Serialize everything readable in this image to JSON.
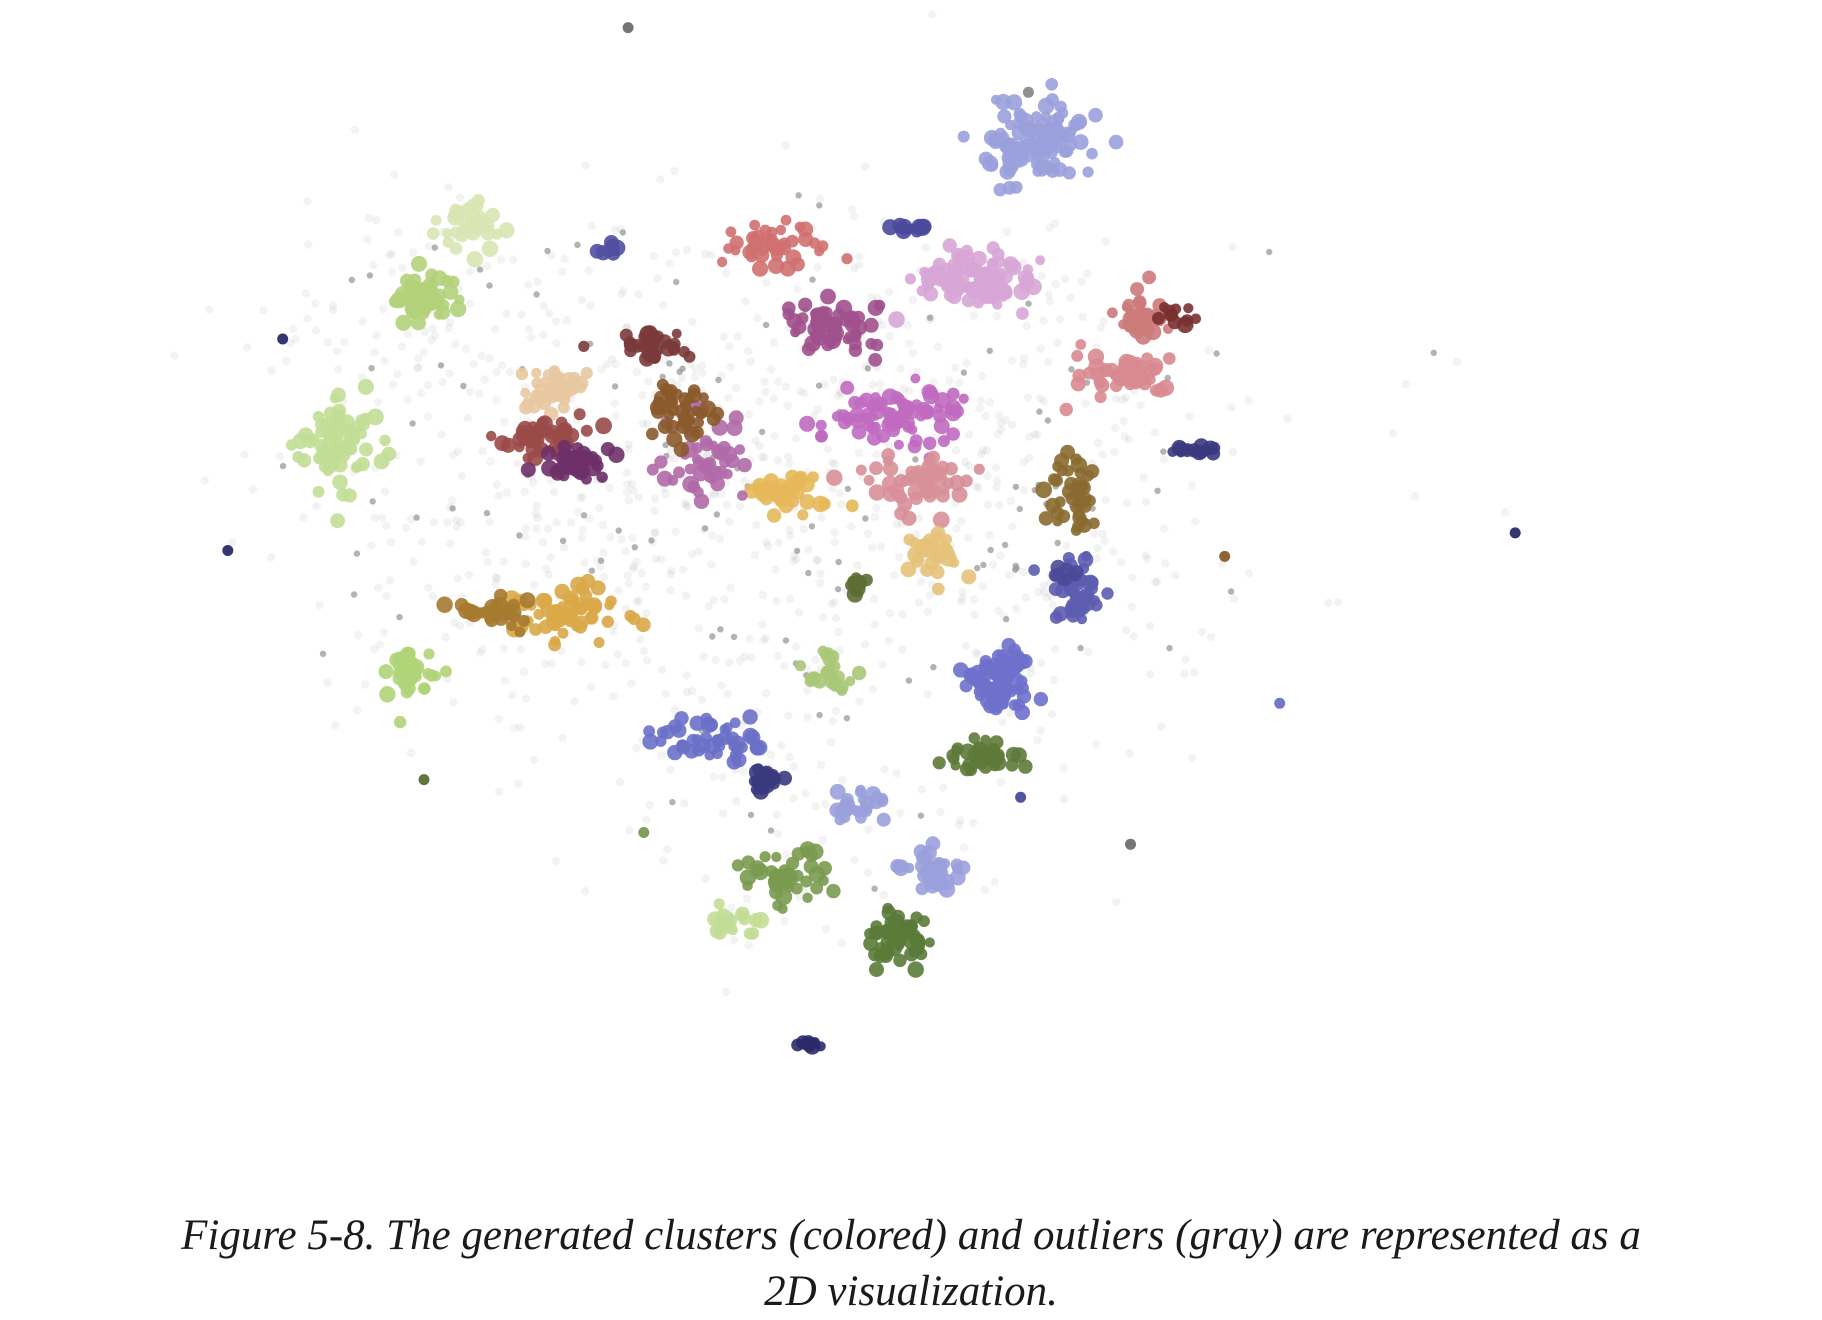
{
  "caption": "Figure 5-8. The generated clusters (colored) and outliers (gray) are represented as a 2D visualization.",
  "chart_data": {
    "type": "scatter",
    "title": "",
    "xlabel": "",
    "ylabel": "",
    "axes_visible": false,
    "grid": false,
    "legend": "none",
    "xlim": [
      0,
      100
    ],
    "ylim": [
      0,
      100
    ],
    "outlier_color": "#9a9a9a",
    "clusters": [
      {
        "color": "#9aa0dc",
        "center": [
          59.0,
          89.0
        ],
        "spread": [
          3.0,
          3.2
        ],
        "n": 110
      },
      {
        "color": "#d7a6d6",
        "center": [
          55.0,
          77.0
        ],
        "spread": [
          3.6,
          2.2
        ],
        "n": 95
      },
      {
        "color": "#c2de96",
        "center": [
          14.5,
          63.0
        ],
        "spread": [
          2.2,
          3.8
        ],
        "n": 70
      },
      {
        "color": "#b3d27a",
        "center": [
          20.0,
          75.5
        ],
        "spread": [
          2.0,
          1.6
        ],
        "n": 45
      },
      {
        "color": "#d8e6b2",
        "center": [
          23.0,
          82.0
        ],
        "spread": [
          2.0,
          1.8
        ],
        "n": 35
      },
      {
        "color": "#7b3a3a",
        "center": [
          34.5,
          71.5
        ],
        "spread": [
          2.2,
          1.2
        ],
        "n": 35
      },
      {
        "color": "#d07070",
        "center": [
          42.0,
          80.0
        ],
        "spread": [
          2.6,
          1.6
        ],
        "n": 45
      },
      {
        "color": "#e8c8a0",
        "center": [
          28.0,
          68.0
        ],
        "spread": [
          2.0,
          1.8
        ],
        "n": 40
      },
      {
        "color": "#a0508c",
        "center": [
          46.0,
          73.0
        ],
        "spread": [
          3.2,
          2.0
        ],
        "n": 55
      },
      {
        "color": "#c06ac0",
        "center": [
          50.0,
          65.5
        ],
        "spread": [
          4.0,
          2.2
        ],
        "n": 75
      },
      {
        "color": "#d89098",
        "center": [
          51.5,
          60.0
        ],
        "spread": [
          3.2,
          2.2
        ],
        "n": 55
      },
      {
        "color": "#e6b85a",
        "center": [
          43.0,
          59.0
        ],
        "spread": [
          2.6,
          1.6
        ],
        "n": 40
      },
      {
        "color": "#9a4a48",
        "center": [
          27.5,
          63.5
        ],
        "spread": [
          2.6,
          1.8
        ],
        "n": 45
      },
      {
        "color": "#6e3068",
        "center": [
          30.0,
          61.5
        ],
        "spread": [
          2.0,
          1.4
        ],
        "n": 35
      },
      {
        "color": "#b06aa8",
        "center": [
          38.0,
          62.0
        ],
        "spread": [
          2.4,
          3.0
        ],
        "n": 45
      },
      {
        "color": "#8b5a2b",
        "center": [
          36.5,
          66.0
        ],
        "spread": [
          2.0,
          2.4
        ],
        "n": 40
      },
      {
        "color": "#d9a848",
        "center": [
          29.5,
          49.0
        ],
        "spread": [
          3.2,
          2.2
        ],
        "n": 60
      },
      {
        "color": "#a67a30",
        "center": [
          24.0,
          48.5
        ],
        "spread": [
          2.0,
          1.4
        ],
        "n": 30
      },
      {
        "color": "#b0d478",
        "center": [
          19.0,
          43.5
        ],
        "spread": [
          1.6,
          2.2
        ],
        "n": 35
      },
      {
        "color": "#e6c27a",
        "center": [
          52.5,
          53.5
        ],
        "spread": [
          1.8,
          2.0
        ],
        "n": 30
      },
      {
        "color": "#d88a90",
        "center": [
          64.0,
          69.0
        ],
        "spread": [
          2.6,
          1.8
        ],
        "n": 45
      },
      {
        "color": "#cc7a7a",
        "center": [
          65.5,
          74.0
        ],
        "spread": [
          2.0,
          1.6
        ],
        "n": 30
      },
      {
        "color": "#8a6a30",
        "center": [
          61.5,
          58.5
        ],
        "spread": [
          1.4,
          3.2
        ],
        "n": 40
      },
      {
        "color": "#5c5cb0",
        "center": [
          61.5,
          50.5
        ],
        "spread": [
          1.6,
          2.6
        ],
        "n": 40
      },
      {
        "color": "#6e70cc",
        "center": [
          56.5,
          43.0
        ],
        "spread": [
          2.2,
          2.4
        ],
        "n": 70
      },
      {
        "color": "#5e7a3a",
        "center": [
          55.5,
          36.5
        ],
        "spread": [
          2.4,
          1.2
        ],
        "n": 35
      },
      {
        "color": "#5a7a38",
        "center": [
          50.5,
          21.0
        ],
        "spread": [
          1.8,
          2.2
        ],
        "n": 50
      },
      {
        "color": "#9aa0dc",
        "center": [
          52.5,
          26.5
        ],
        "spread": [
          2.0,
          1.6
        ],
        "n": 35
      },
      {
        "color": "#7a9a50",
        "center": [
          43.0,
          26.5
        ],
        "spread": [
          2.4,
          2.0
        ],
        "n": 45
      },
      {
        "color": "#c2de96",
        "center": [
          39.5,
          22.5
        ],
        "spread": [
          1.6,
          1.0
        ],
        "n": 20
      },
      {
        "color": "#6a70c8",
        "center": [
          38.0,
          38.0
        ],
        "spread": [
          3.4,
          1.6
        ],
        "n": 45
      },
      {
        "color": "#3a3a80",
        "center": [
          42.0,
          34.5
        ],
        "spread": [
          1.0,
          1.0
        ],
        "n": 18
      },
      {
        "color": "#9aa0dc",
        "center": [
          47.5,
          32.5
        ],
        "spread": [
          2.0,
          1.4
        ],
        "n": 25
      },
      {
        "color": "#a8c878",
        "center": [
          46.0,
          43.5
        ],
        "spread": [
          1.6,
          1.6
        ],
        "n": 25
      },
      {
        "color": "#3a3a80",
        "center": [
          69.5,
          62.5
        ],
        "spread": [
          1.2,
          0.4
        ],
        "n": 14
      },
      {
        "color": "#4a4a98",
        "center": [
          61.0,
          52.0
        ],
        "spread": [
          0.8,
          0.6
        ],
        "n": 10
      },
      {
        "color": "#5050a0",
        "center": [
          32.0,
          80.0
        ],
        "spread": [
          0.8,
          0.6
        ],
        "n": 10
      },
      {
        "color": "#4a4a9c",
        "center": [
          51.0,
          81.5
        ],
        "spread": [
          1.0,
          0.4
        ],
        "n": 10
      },
      {
        "color": "#7a3030",
        "center": [
          67.5,
          74.0
        ],
        "spread": [
          1.2,
          0.8
        ],
        "n": 12
      },
      {
        "color": "#5c6e34",
        "center": [
          47.5,
          51.0
        ],
        "spread": [
          0.6,
          0.8
        ],
        "n": 10
      },
      {
        "color": "#2a2a6a",
        "center": [
          44.5,
          12.0
        ],
        "spread": [
          0.8,
          0.3
        ],
        "n": 8
      }
    ],
    "lone_points": [
      {
        "x": 33.0,
        "y": 98.5,
        "color": "#6e6e6e"
      },
      {
        "x": 11.0,
        "y": 72.0,
        "color": "#2a2a6a"
      },
      {
        "x": 7.5,
        "y": 54.0,
        "color": "#2a2a6a"
      },
      {
        "x": 89.5,
        "y": 55.5,
        "color": "#2a2a6a"
      },
      {
        "x": 71.0,
        "y": 53.5,
        "color": "#8b5a2b"
      },
      {
        "x": 74.5,
        "y": 41.0,
        "color": "#6e70cc"
      },
      {
        "x": 65.0,
        "y": 29.0,
        "color": "#6e6e6e"
      },
      {
        "x": 58.0,
        "y": 33.0,
        "color": "#4a4a98"
      },
      {
        "x": 58.5,
        "y": 93.0,
        "color": "#8a8a8a"
      },
      {
        "x": 34.0,
        "y": 30.0,
        "color": "#7a9a50"
      },
      {
        "x": 20.0,
        "y": 34.5,
        "color": "#5c6e34"
      }
    ]
  }
}
